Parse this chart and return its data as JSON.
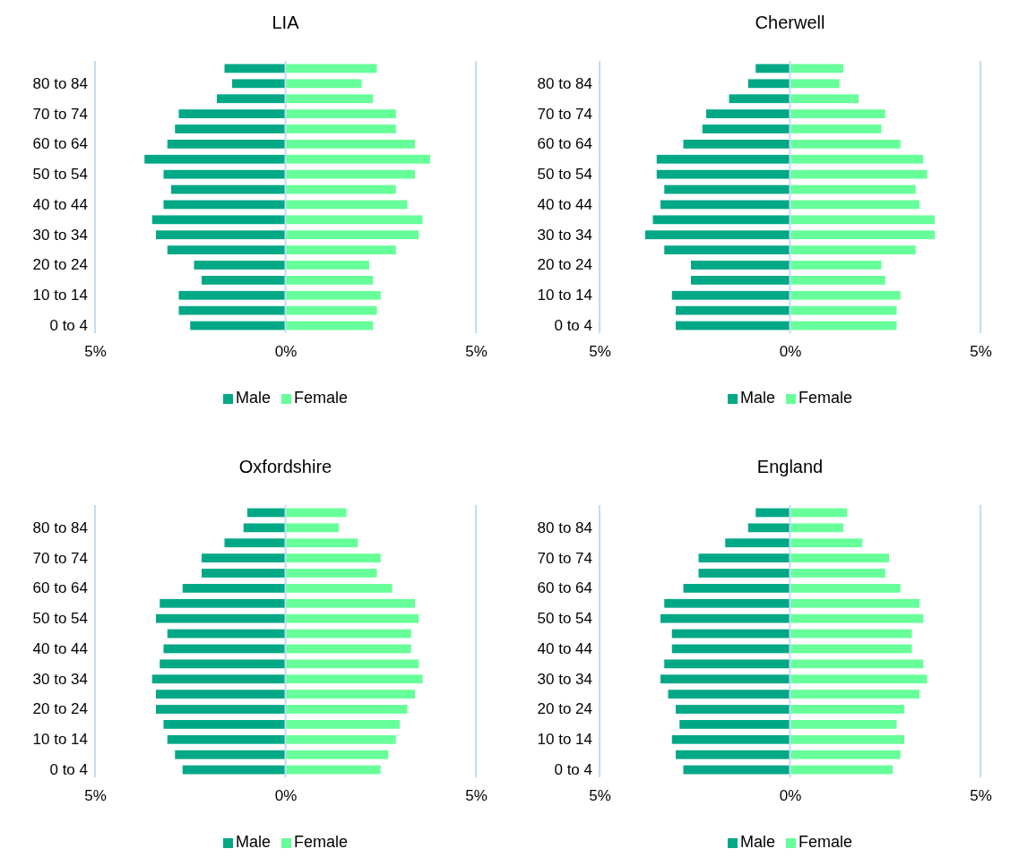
{
  "chart_data": [
    {
      "type": "bar",
      "title": "LIA",
      "orientation": "horizontal",
      "stacked": true,
      "categories": [
        null,
        "80 to 84",
        null,
        "70 to 74",
        null,
        "60 to 64",
        null,
        "50 to 54",
        null,
        "40 to 44",
        null,
        "30 to 34",
        null,
        "20 to 24",
        null,
        "10 to 14",
        null,
        "0 to 4"
      ],
      "series": [
        {
          "name": "Male",
          "color": "#00a886",
          "values": [
            -1.6,
            -1.4,
            -1.8,
            -2.8,
            -2.9,
            -3.1,
            -3.7,
            -3.2,
            -3.0,
            -3.2,
            -3.5,
            -3.4,
            -3.1,
            -2.4,
            -2.2,
            -2.8,
            -2.8,
            -2.5
          ]
        },
        {
          "name": "Female",
          "color": "#66ff99",
          "values": [
            2.4,
            2.0,
            2.3,
            2.9,
            2.9,
            3.4,
            3.8,
            3.4,
            2.9,
            3.2,
            3.6,
            3.5,
            2.9,
            2.2,
            2.3,
            2.5,
            2.4,
            2.3
          ]
        }
      ],
      "xlim": [
        -5,
        5
      ],
      "xticks": [
        {
          "value": -5,
          "label": "5%"
        },
        {
          "value": 0,
          "label": "0%"
        },
        {
          "value": 5,
          "label": "5%"
        }
      ],
      "ref_lines": [
        {
          "axis": "x",
          "value": 0,
          "color": "#bfdcf7"
        }
      ],
      "legend": "bottom"
    },
    {
      "type": "bar",
      "title": "Cherwell",
      "orientation": "horizontal",
      "stacked": true,
      "categories": [
        null,
        "80 to 84",
        null,
        "70 to 74",
        null,
        "60 to 64",
        null,
        "50 to 54",
        null,
        "40 to 44",
        null,
        "30 to 34",
        null,
        "20 to 24",
        null,
        "10 to 14",
        null,
        "0 to 4"
      ],
      "series": [
        {
          "name": "Male",
          "color": "#00a886",
          "values": [
            -0.9,
            -1.1,
            -1.6,
            -2.2,
            -2.3,
            -2.8,
            -3.5,
            -3.5,
            -3.3,
            -3.4,
            -3.6,
            -3.8,
            -3.3,
            -2.6,
            -2.6,
            -3.1,
            -3.0,
            -3.0
          ]
        },
        {
          "name": "Female",
          "color": "#66ff99",
          "values": [
            1.4,
            1.3,
            1.8,
            2.5,
            2.4,
            2.9,
            3.5,
            3.6,
            3.3,
            3.4,
            3.8,
            3.8,
            3.3,
            2.4,
            2.5,
            2.9,
            2.8,
            2.8
          ]
        }
      ],
      "xlim": [
        -5,
        5
      ],
      "xticks": [
        {
          "value": -5,
          "label": "5%"
        },
        {
          "value": 0,
          "label": "0%"
        },
        {
          "value": 5,
          "label": "5%"
        }
      ],
      "ref_lines": [
        {
          "axis": "x",
          "value": 0,
          "color": "#bfdcf7"
        }
      ],
      "legend": "bottom"
    },
    {
      "type": "bar",
      "title": "Oxfordshire",
      "orientation": "horizontal",
      "stacked": true,
      "categories": [
        null,
        "80 to 84",
        null,
        "70 to 74",
        null,
        "60 to 64",
        null,
        "50 to 54",
        null,
        "40 to 44",
        null,
        "30 to 34",
        null,
        "20 to 24",
        null,
        "10 to 14",
        null,
        "0 to 4"
      ],
      "series": [
        {
          "name": "Male",
          "color": "#00a886",
          "values": [
            -1.0,
            -1.1,
            -1.6,
            -2.2,
            -2.2,
            -2.7,
            -3.3,
            -3.4,
            -3.1,
            -3.2,
            -3.3,
            -3.5,
            -3.4,
            -3.4,
            -3.2,
            -3.1,
            -2.9,
            -2.7
          ]
        },
        {
          "name": "Female",
          "color": "#66ff99",
          "values": [
            1.6,
            1.4,
            1.9,
            2.5,
            2.4,
            2.8,
            3.4,
            3.5,
            3.3,
            3.3,
            3.5,
            3.6,
            3.4,
            3.2,
            3.0,
            2.9,
            2.7,
            2.5
          ]
        }
      ],
      "xlim": [
        -5,
        5
      ],
      "xticks": [
        {
          "value": -5,
          "label": "5%"
        },
        {
          "value": 0,
          "label": "0%"
        },
        {
          "value": 5,
          "label": "5%"
        }
      ],
      "ref_lines": [
        {
          "axis": "x",
          "value": 0,
          "color": "#bfdcf7"
        }
      ],
      "legend": "bottom"
    },
    {
      "type": "bar",
      "title": "England",
      "orientation": "horizontal",
      "stacked": true,
      "categories": [
        null,
        "80 to 84",
        null,
        "70 to 74",
        null,
        "60 to 64",
        null,
        "50 to 54",
        null,
        "40 to 44",
        null,
        "30 to 34",
        null,
        "20 to 24",
        null,
        "10 to 14",
        null,
        "0 to 4"
      ],
      "series": [
        {
          "name": "Male",
          "color": "#00a886",
          "values": [
            -0.9,
            -1.1,
            -1.7,
            -2.4,
            -2.4,
            -2.8,
            -3.3,
            -3.4,
            -3.1,
            -3.1,
            -3.3,
            -3.4,
            -3.2,
            -3.0,
            -2.9,
            -3.1,
            -3.0,
            -2.8
          ]
        },
        {
          "name": "Female",
          "color": "#66ff99",
          "values": [
            1.5,
            1.4,
            1.9,
            2.6,
            2.5,
            2.9,
            3.4,
            3.5,
            3.2,
            3.2,
            3.5,
            3.6,
            3.4,
            3.0,
            2.8,
            3.0,
            2.9,
            2.7
          ]
        }
      ],
      "xlim": [
        -5,
        5
      ],
      "xticks": [
        {
          "value": -5,
          "label": "5%"
        },
        {
          "value": 0,
          "label": "0%"
        },
        {
          "value": 5,
          "label": "5%"
        }
      ],
      "ref_lines": [
        {
          "axis": "x",
          "value": 0,
          "color": "#bfdcf7"
        }
      ],
      "legend": "bottom"
    }
  ]
}
